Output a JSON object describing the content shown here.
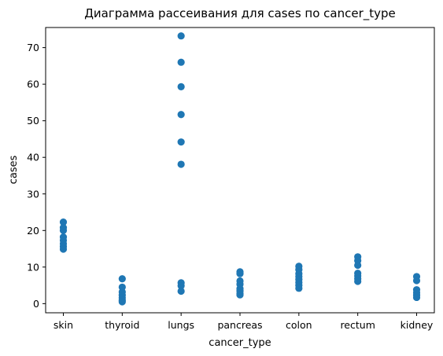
{
  "chart_data": {
    "type": "scatter",
    "title": "Диаграмма рассеивания для cases по cancer_type",
    "xlabel": "cancer_type",
    "ylabel": "cases",
    "categories": [
      "skin",
      "thyroid",
      "lungs",
      "pancreas",
      "colon",
      "rectum",
      "kidney"
    ],
    "y_ticks": [
      0,
      10,
      20,
      30,
      40,
      50,
      60,
      70
    ],
    "ylim": [
      -2.5,
      75.5
    ],
    "grid": false,
    "marker_color": "#1f77b4",
    "points": [
      {
        "x": "skin",
        "y": 22.3
      },
      {
        "x": "skin",
        "y": 20.8
      },
      {
        "x": "skin",
        "y": 20.0
      },
      {
        "x": "skin",
        "y": 18.2
      },
      {
        "x": "skin",
        "y": 17.3
      },
      {
        "x": "skin",
        "y": 16.4
      },
      {
        "x": "skin",
        "y": 15.6
      },
      {
        "x": "skin",
        "y": 14.9
      },
      {
        "x": "thyroid",
        "y": 6.8
      },
      {
        "x": "thyroid",
        "y": 4.5
      },
      {
        "x": "thyroid",
        "y": 3.2
      },
      {
        "x": "thyroid",
        "y": 2.3
      },
      {
        "x": "thyroid",
        "y": 1.6
      },
      {
        "x": "thyroid",
        "y": 0.9
      },
      {
        "x": "thyroid",
        "y": 0.5
      },
      {
        "x": "lungs",
        "y": 73.2
      },
      {
        "x": "lungs",
        "y": 66.0
      },
      {
        "x": "lungs",
        "y": 59.3
      },
      {
        "x": "lungs",
        "y": 51.7
      },
      {
        "x": "lungs",
        "y": 44.2
      },
      {
        "x": "lungs",
        "y": 38.1
      },
      {
        "x": "lungs",
        "y": 5.7
      },
      {
        "x": "lungs",
        "y": 4.9
      },
      {
        "x": "lungs",
        "y": 3.4
      },
      {
        "x": "pancreas",
        "y": 8.7
      },
      {
        "x": "pancreas",
        "y": 8.2
      },
      {
        "x": "pancreas",
        "y": 6.2
      },
      {
        "x": "pancreas",
        "y": 5.3
      },
      {
        "x": "pancreas",
        "y": 4.1
      },
      {
        "x": "pancreas",
        "y": 3.5
      },
      {
        "x": "pancreas",
        "y": 2.8
      },
      {
        "x": "pancreas",
        "y": 2.4
      },
      {
        "x": "colon",
        "y": 10.2
      },
      {
        "x": "colon",
        "y": 9.3
      },
      {
        "x": "colon",
        "y": 8.2
      },
      {
        "x": "colon",
        "y": 7.4
      },
      {
        "x": "colon",
        "y": 6.6
      },
      {
        "x": "colon",
        "y": 5.8
      },
      {
        "x": "colon",
        "y": 5.0
      },
      {
        "x": "colon",
        "y": 4.2
      },
      {
        "x": "rectum",
        "y": 12.8
      },
      {
        "x": "rectum",
        "y": 11.8
      },
      {
        "x": "rectum",
        "y": 10.5
      },
      {
        "x": "rectum",
        "y": 8.3
      },
      {
        "x": "rectum",
        "y": 7.6
      },
      {
        "x": "rectum",
        "y": 6.8
      },
      {
        "x": "rectum",
        "y": 6.1
      },
      {
        "x": "kidney",
        "y": 7.4
      },
      {
        "x": "kidney",
        "y": 6.3
      },
      {
        "x": "kidney",
        "y": 3.8
      },
      {
        "x": "kidney",
        "y": 3.0
      },
      {
        "x": "kidney",
        "y": 2.3
      },
      {
        "x": "kidney",
        "y": 1.7
      }
    ]
  }
}
